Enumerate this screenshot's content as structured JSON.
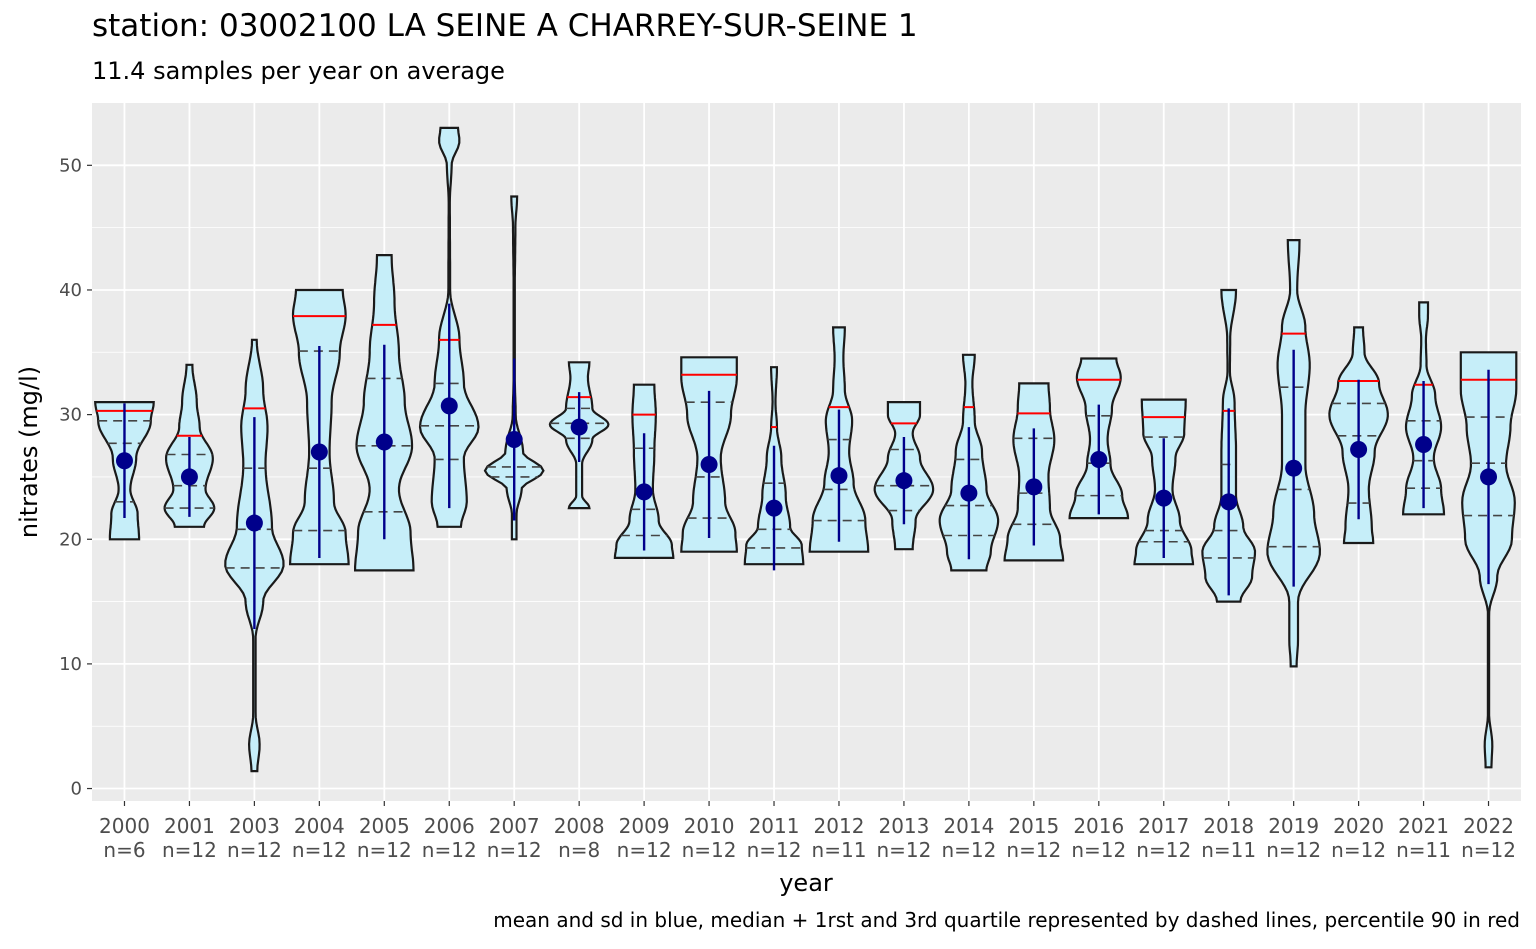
{
  "title": "station: 03002100 LA SEINE A CHARREY-SUR-SEINE 1",
  "subtitle": "11.4 samples per year on average",
  "caption": "mean and sd in blue, median + 1rst and 3rd quartile represented by dashed lines,  percentile 90 in red",
  "colors": {
    "panel": "#ebebeb",
    "grid": "#ffffff",
    "violin_fill": "#c6eef9",
    "violin_stroke": "#1a1a1a",
    "mean_sd": "#00008b",
    "p90": "#ff0000",
    "quartile_dash": "#444444"
  },
  "chart_data": {
    "type": "violin",
    "xlabel": "year",
    "ylabel": "nitrates (mg/l)",
    "ylim": [
      -1,
      55
    ],
    "yticks": [
      0,
      10,
      20,
      30,
      40,
      50
    ],
    "grid": true,
    "categories": [
      "2000",
      "2001",
      "2003",
      "2004",
      "2005",
      "2006",
      "2007",
      "2008",
      "2009",
      "2010",
      "2011",
      "2012",
      "2013",
      "2014",
      "2015",
      "2016",
      "2017",
      "2018",
      "2019",
      "2020",
      "2021",
      "2022"
    ],
    "n_labels": [
      "n=6",
      "n=12",
      "n=12",
      "n=12",
      "n=12",
      "n=12",
      "n=12",
      "n=8",
      "n=12",
      "n=12",
      "n=12",
      "n=11",
      "n=12",
      "n=12",
      "n=12",
      "n=12",
      "n=12",
      "n=11",
      "n=12",
      "n=12",
      "n=11",
      "n=12"
    ],
    "series": [
      {
        "year": "2000",
        "min": 20.0,
        "max": 31.0,
        "mean": 26.3,
        "sd": 4.6,
        "q1": 23.0,
        "median": 27.7,
        "q3": 29.5,
        "p90": 30.3,
        "shape": [
          [
            20.0,
            0.5
          ],
          [
            22.0,
            0.45
          ],
          [
            24.0,
            0.2
          ],
          [
            26.5,
            0.4
          ],
          [
            29.5,
            0.9
          ],
          [
            31.0,
            1.0
          ]
        ]
      },
      {
        "year": "2001",
        "min": 21.0,
        "max": 34.0,
        "mean": 25.0,
        "sd": 3.2,
        "q1": 22.5,
        "median": 24.3,
        "q3": 26.8,
        "p90": 28.3,
        "shape": [
          [
            21.0,
            0.5
          ],
          [
            22.5,
            0.85
          ],
          [
            24.0,
            0.55
          ],
          [
            26.5,
            0.8
          ],
          [
            29.0,
            0.35
          ],
          [
            31.0,
            0.25
          ],
          [
            34.0,
            0.1
          ]
        ]
      },
      {
        "year": "2003",
        "min": 1.4,
        "max": 36.0,
        "mean": 21.3,
        "sd": 8.5,
        "q1": 17.7,
        "median": 20.8,
        "q3": 25.7,
        "p90": 30.5,
        "shape": [
          [
            1.4,
            0.1
          ],
          [
            3.5,
            0.18
          ],
          [
            6.0,
            0.04
          ],
          [
            12.0,
            0.04
          ],
          [
            15.0,
            0.3
          ],
          [
            18.0,
            1.0
          ],
          [
            21.0,
            0.6
          ],
          [
            26.0,
            0.38
          ],
          [
            29.0,
            0.45
          ],
          [
            32.0,
            0.3
          ],
          [
            36.0,
            0.08
          ]
        ]
      },
      {
        "year": "2004",
        "min": 18.0,
        "max": 40.0,
        "mean": 27.0,
        "sd": 8.5,
        "q1": 20.7,
        "median": 25.7,
        "q3": 35.1,
        "p90": 37.9,
        "shape": [
          [
            18.0,
            1.0
          ],
          [
            20.5,
            0.9
          ],
          [
            23.0,
            0.5
          ],
          [
            27.0,
            0.35
          ],
          [
            31.0,
            0.42
          ],
          [
            35.0,
            0.7
          ],
          [
            38.0,
            0.9
          ],
          [
            40.0,
            0.8
          ]
        ]
      },
      {
        "year": "2005",
        "min": 17.5,
        "max": 42.8,
        "mean": 27.8,
        "sd": 7.8,
        "q1": 22.2,
        "median": 27.5,
        "q3": 32.9,
        "p90": 37.2,
        "shape": [
          [
            17.5,
            1.0
          ],
          [
            20.5,
            0.9
          ],
          [
            24.0,
            0.5
          ],
          [
            27.5,
            0.95
          ],
          [
            31.0,
            0.7
          ],
          [
            35.0,
            0.5
          ],
          [
            39.0,
            0.35
          ],
          [
            42.8,
            0.25
          ]
        ]
      },
      {
        "year": "2006",
        "min": 21.0,
        "max": 53.0,
        "mean": 30.7,
        "sd": 8.2,
        "q1": 26.4,
        "median": 29.1,
        "q3": 32.5,
        "p90": 36.0,
        "shape": [
          [
            21.0,
            0.4
          ],
          [
            23.0,
            0.6
          ],
          [
            26.5,
            0.5
          ],
          [
            29.0,
            1.0
          ],
          [
            32.5,
            0.5
          ],
          [
            36.0,
            0.35
          ],
          [
            40.0,
            0.03
          ],
          [
            47.0,
            0.02
          ],
          [
            50.0,
            0.08
          ],
          [
            52.0,
            0.35
          ],
          [
            53.0,
            0.3
          ]
        ]
      },
      {
        "year": "2007",
        "min": 20.0,
        "max": 47.5,
        "mean": 28.0,
        "sd": 6.5,
        "q1": 25.0,
        "median": 25.8,
        "q3": 30.8,
        "p90": 32.0,
        "shape": [
          [
            20.0,
            0.08
          ],
          [
            22.0,
            0.08
          ],
          [
            24.0,
            0.25
          ],
          [
            25.5,
            1.0
          ],
          [
            27.0,
            0.3
          ],
          [
            30.0,
            0.05
          ],
          [
            33.0,
            0.02
          ],
          [
            40.0,
            0.02
          ],
          [
            45.0,
            0.04
          ],
          [
            47.5,
            0.1
          ]
        ]
      },
      {
        "year": "2008",
        "min": 22.5,
        "max": 34.2,
        "mean": 29.0,
        "sd": 2.8,
        "q1": 28.1,
        "median": 29.3,
        "q3": 30.5,
        "p90": 31.4,
        "shape": [
          [
            22.5,
            0.35
          ],
          [
            23.5,
            0.1
          ],
          [
            26.0,
            0.1
          ],
          [
            28.0,
            0.45
          ],
          [
            29.2,
            1.0
          ],
          [
            30.5,
            0.45
          ],
          [
            33.0,
            0.3
          ],
          [
            34.2,
            0.35
          ]
        ]
      },
      {
        "year": "2009",
        "min": 18.5,
        "max": 32.4,
        "mean": 23.8,
        "sd": 4.7,
        "q1": 20.3,
        "median": 22.4,
        "q3": 27.3,
        "p90": 30.0,
        "shape": [
          [
            18.5,
            1.0
          ],
          [
            19.5,
            0.95
          ],
          [
            21.5,
            0.5
          ],
          [
            24.0,
            0.3
          ],
          [
            27.0,
            0.35
          ],
          [
            30.0,
            0.4
          ],
          [
            32.4,
            0.35
          ]
        ]
      },
      {
        "year": "2010",
        "min": 19.0,
        "max": 34.6,
        "mean": 26.0,
        "sd": 5.9,
        "q1": 21.7,
        "median": 25.0,
        "q3": 31.0,
        "p90": 33.2,
        "shape": [
          [
            19.0,
            0.95
          ],
          [
            20.5,
            0.9
          ],
          [
            23.0,
            0.55
          ],
          [
            26.5,
            0.4
          ],
          [
            30.0,
            0.75
          ],
          [
            33.0,
            0.95
          ],
          [
            34.6,
            0.95
          ]
        ]
      },
      {
        "year": "2011",
        "min": 18.0,
        "max": 33.8,
        "mean": 22.5,
        "sd": 5.0,
        "q1": 19.3,
        "median": 20.8,
        "q3": 24.5,
        "p90": 29.0,
        "shape": [
          [
            18.0,
            1.0
          ],
          [
            19.5,
            0.95
          ],
          [
            21.0,
            0.55
          ],
          [
            23.5,
            0.4
          ],
          [
            26.5,
            0.25
          ],
          [
            29.0,
            0.1
          ],
          [
            31.0,
            0.05
          ],
          [
            33.8,
            0.1
          ]
        ]
      },
      {
        "year": "2012",
        "min": 19.0,
        "max": 37.0,
        "mean": 25.1,
        "sd": 5.3,
        "q1": 21.5,
        "median": 24.0,
        "q3": 28.0,
        "p90": 30.6,
        "shape": [
          [
            19.0,
            1.0
          ],
          [
            21.5,
            0.9
          ],
          [
            24.5,
            0.5
          ],
          [
            27.0,
            0.35
          ],
          [
            29.5,
            0.45
          ],
          [
            32.0,
            0.2
          ],
          [
            34.5,
            0.15
          ],
          [
            37.0,
            0.2
          ]
        ]
      },
      {
        "year": "2013",
        "min": 19.2,
        "max": 31.0,
        "mean": 24.7,
        "sd": 3.5,
        "q1": 22.3,
        "median": 24.3,
        "q3": 27.2,
        "p90": 29.3,
        "shape": [
          [
            19.2,
            0.3
          ],
          [
            21.5,
            0.4
          ],
          [
            24.0,
            1.0
          ],
          [
            26.5,
            0.55
          ],
          [
            28.5,
            0.3
          ],
          [
            30.0,
            0.55
          ],
          [
            31.0,
            0.55
          ]
        ]
      },
      {
        "year": "2014",
        "min": 17.5,
        "max": 34.8,
        "mean": 23.7,
        "sd": 5.3,
        "q1": 20.3,
        "median": 22.7,
        "q3": 26.4,
        "p90": 30.6,
        "shape": [
          [
            17.5,
            0.6
          ],
          [
            19.0,
            0.75
          ],
          [
            21.5,
            1.0
          ],
          [
            24.0,
            0.6
          ],
          [
            27.0,
            0.45
          ],
          [
            29.5,
            0.2
          ],
          [
            32.5,
            0.12
          ],
          [
            34.8,
            0.2
          ]
        ]
      },
      {
        "year": "2015",
        "min": 18.3,
        "max": 32.5,
        "mean": 24.2,
        "sd": 4.7,
        "q1": 21.2,
        "median": 23.7,
        "q3": 28.1,
        "p90": 30.1,
        "shape": [
          [
            18.3,
            1.0
          ],
          [
            20.0,
            0.9
          ],
          [
            22.5,
            0.55
          ],
          [
            25.0,
            0.5
          ],
          [
            28.0,
            0.7
          ],
          [
            30.5,
            0.55
          ],
          [
            32.5,
            0.5
          ]
        ]
      },
      {
        "year": "2016",
        "min": 21.7,
        "max": 34.5,
        "mean": 26.4,
        "sd": 4.4,
        "q1": 23.5,
        "median": 26.1,
        "q3": 29.9,
        "p90": 32.8,
        "shape": [
          [
            21.7,
            1.0
          ],
          [
            23.5,
            0.8
          ],
          [
            26.0,
            0.4
          ],
          [
            28.0,
            0.3
          ],
          [
            30.5,
            0.45
          ],
          [
            33.0,
            0.75
          ],
          [
            34.5,
            0.6
          ]
        ]
      },
      {
        "year": "2017",
        "min": 18.0,
        "max": 31.2,
        "mean": 23.3,
        "sd": 4.8,
        "q1": 19.8,
        "median": 20.7,
        "q3": 28.2,
        "p90": 29.8,
        "shape": [
          [
            18.0,
            1.0
          ],
          [
            19.0,
            0.95
          ],
          [
            21.5,
            0.55
          ],
          [
            24.0,
            0.3
          ],
          [
            26.5,
            0.4
          ],
          [
            28.5,
            0.7
          ],
          [
            31.2,
            0.75
          ]
        ]
      },
      {
        "year": "2018",
        "min": 15.0,
        "max": 40.0,
        "mean": 23.0,
        "sd": 7.5,
        "q1": 18.5,
        "median": 20.7,
        "q3": 26.0,
        "p90": 30.3,
        "shape": [
          [
            15.0,
            0.4
          ],
          [
            17.0,
            0.8
          ],
          [
            19.0,
            0.9
          ],
          [
            21.0,
            0.5
          ],
          [
            23.5,
            0.25
          ],
          [
            27.0,
            0.25
          ],
          [
            31.0,
            0.2
          ],
          [
            33.5,
            0.04
          ],
          [
            36.0,
            0.05
          ],
          [
            40.0,
            0.25
          ]
        ]
      },
      {
        "year": "2019",
        "min": 9.8,
        "max": 44.0,
        "mean": 25.7,
        "sd": 9.5,
        "q1": 19.4,
        "median": 24.0,
        "q3": 32.2,
        "p90": 36.5,
        "shape": [
          [
            9.8,
            0.1
          ],
          [
            12.0,
            0.15
          ],
          [
            15.0,
            0.15
          ],
          [
            19.0,
            0.9
          ],
          [
            22.0,
            0.7
          ],
          [
            26.0,
            0.4
          ],
          [
            30.0,
            0.4
          ],
          [
            34.0,
            0.55
          ],
          [
            37.0,
            0.4
          ],
          [
            40.0,
            0.12
          ],
          [
            44.0,
            0.2
          ]
        ]
      },
      {
        "year": "2020",
        "min": 19.7,
        "max": 37.0,
        "mean": 27.2,
        "sd": 5.6,
        "q1": 22.9,
        "median": 28.3,
        "q3": 30.9,
        "p90": 32.7,
        "shape": [
          [
            19.7,
            0.5
          ],
          [
            21.0,
            0.45
          ],
          [
            24.0,
            0.35
          ],
          [
            27.0,
            0.55
          ],
          [
            30.0,
            1.0
          ],
          [
            32.5,
            0.7
          ],
          [
            35.0,
            0.2
          ],
          [
            37.0,
            0.15
          ]
        ]
      },
      {
        "year": "2021",
        "min": 22.0,
        "max": 39.0,
        "mean": 27.6,
        "sd": 5.1,
        "q1": 24.1,
        "median": 26.3,
        "q3": 29.5,
        "p90": 32.4,
        "shape": [
          [
            22.0,
            0.7
          ],
          [
            24.0,
            0.6
          ],
          [
            26.5,
            0.35
          ],
          [
            29.0,
            0.6
          ],
          [
            31.5,
            0.4
          ],
          [
            34.0,
            0.1
          ],
          [
            36.0,
            0.08
          ],
          [
            38.0,
            0.15
          ],
          [
            39.0,
            0.15
          ]
        ]
      },
      {
        "year": "2022",
        "min": 1.7,
        "max": 35.0,
        "mean": 25.0,
        "sd": 8.6,
        "q1": 21.9,
        "median": 26.1,
        "q3": 29.8,
        "p90": 32.8,
        "shape": [
          [
            1.7,
            0.1
          ],
          [
            3.5,
            0.13
          ],
          [
            6.0,
            0.02
          ],
          [
            14.0,
            0.02
          ],
          [
            17.0,
            0.3
          ],
          [
            20.0,
            0.8
          ],
          [
            23.0,
            0.9
          ],
          [
            26.0,
            0.6
          ],
          [
            29.0,
            0.75
          ],
          [
            32.0,
            0.95
          ],
          [
            35.0,
            0.95
          ]
        ]
      }
    ]
  }
}
